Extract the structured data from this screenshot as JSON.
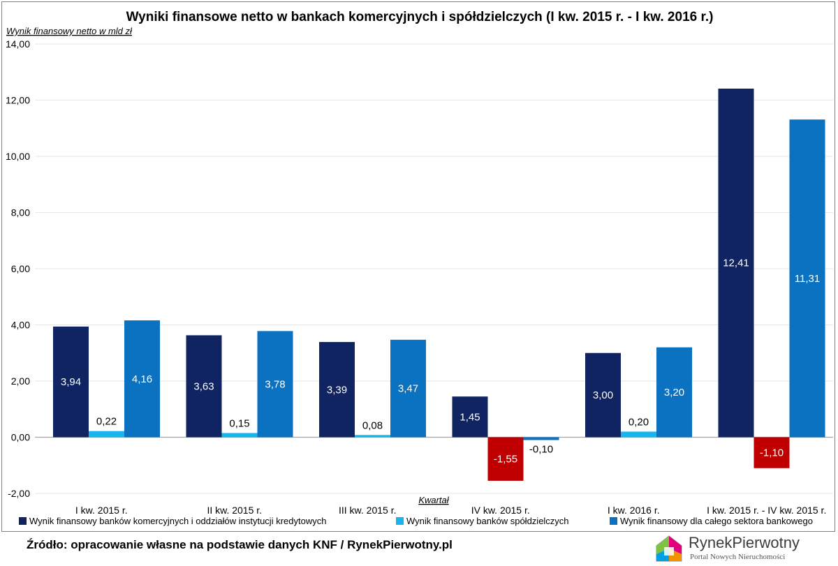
{
  "chart_data": {
    "type": "bar",
    "title": "Wyniki finansowe netto w bankach komercyjnych i spółdzielczych (I kw. 2015 r. - I kw. 2016 r.)",
    "ylabel": "Wynik finansowy netto w mld zł",
    "xlabel": "Kwartał",
    "categories": [
      "I kw. 2015 r.",
      "II kw. 2015 r.",
      "III kw. 2015 r.",
      "IV kw. 2015 r.",
      "I kw. 2016 r.",
      "I kw. 2015 r. - IV kw. 2015 r."
    ],
    "series": [
      {
        "name": "Wynik finansowy banków komercyjnych i oddziałów instytucji kredytowych",
        "values": [
          3.94,
          3.63,
          3.39,
          1.45,
          3.0,
          12.41
        ],
        "color": "#0f2461"
      },
      {
        "name": "Wynik finansowy banków spółdzielczych",
        "values": [
          0.22,
          0.15,
          0.08,
          -1.55,
          0.2,
          -1.1
        ],
        "color": "#18b4ee"
      },
      {
        "name": "Wynik finansowy dla całego sektora bankowego",
        "values": [
          4.16,
          3.78,
          3.47,
          -0.1,
          3.2,
          11.31
        ],
        "color": "#0b72c2"
      }
    ],
    "data_labels": [
      [
        "3,94",
        "3,63",
        "3,39",
        "1,45",
        "3,00",
        "12,41"
      ],
      [
        "0,22",
        "0,15",
        "0,08",
        "-1,55",
        "0,20",
        "-1,10"
      ],
      [
        "4,16",
        "3,78",
        "3,47",
        "-0,10",
        "3,20",
        "11,31"
      ]
    ],
    "negative_color": "#c00000",
    "ylim": [
      -2,
      14
    ],
    "yticks": [
      -2,
      0,
      2,
      4,
      6,
      8,
      10,
      12,
      14
    ],
    "ytick_labels": [
      "-2,00",
      "0,00",
      "2,00",
      "4,00",
      "6,00",
      "8,00",
      "10,00",
      "12,00",
      "14,00"
    ],
    "grid": true,
    "legend_position": "bottom"
  },
  "source": "Źródło: opracowanie własne na podstawie danych KNF / RynekPierwotny.pl",
  "logo": {
    "name": "RynekPierwotny",
    "tagline": "Portal Nowych Nieruchomości"
  }
}
